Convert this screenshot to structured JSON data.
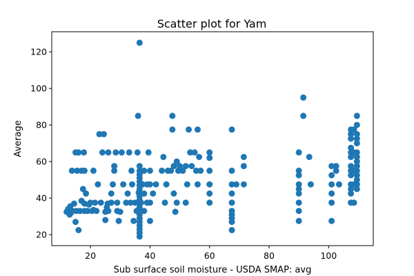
{
  "chart_data": {
    "type": "scatter",
    "title": "Scatter plot for Yam",
    "xlabel": "Sub surface soil moisture - USDA SMAP: avg",
    "ylabel": "Average",
    "xlim": [
      7,
      115
    ],
    "ylim": [
      14,
      131
    ],
    "xticks": [
      20,
      40,
      60,
      80,
      100
    ],
    "yticks": [
      20,
      40,
      60,
      80,
      100,
      120
    ],
    "grid": false,
    "color": "#1f77b4",
    "series": [
      {
        "points": [
          [
            12.0,
            32.5
          ],
          [
            12.5,
            34.0
          ],
          [
            13.0,
            31.0
          ],
          [
            13.2,
            35.5
          ],
          [
            13.5,
            32.0
          ],
          [
            13.8,
            55.0
          ],
          [
            14.0,
            33.0
          ],
          [
            14.5,
            37.0
          ],
          [
            15.0,
            27.0
          ],
          [
            15.0,
            65.0
          ],
          [
            15.3,
            33.0
          ],
          [
            15.5,
            55.0
          ],
          [
            16.0,
            22.5
          ],
          [
            16.0,
            65.0
          ],
          [
            16.5,
            33.0
          ],
          [
            17.0,
            55.0
          ],
          [
            17.0,
            38.5
          ],
          [
            17.5,
            45.0
          ],
          [
            17.8,
            65.0
          ],
          [
            18.0,
            33.0
          ],
          [
            18.0,
            37.0
          ],
          [
            18.0,
            55.0
          ],
          [
            18.5,
            42.5
          ],
          [
            19.0,
            33.0
          ],
          [
            19.5,
            36.5
          ],
          [
            20.0,
            37.5
          ],
          [
            20.5,
            33.0
          ],
          [
            21.0,
            55.0
          ],
          [
            21.0,
            33.5
          ],
          [
            21.5,
            37.5
          ],
          [
            22.0,
            33.0
          ],
          [
            22.5,
            47.5
          ],
          [
            23.0,
            75.0
          ],
          [
            23.5,
            37.5
          ],
          [
            24.0,
            65.0
          ],
          [
            24.5,
            75.0
          ],
          [
            25.0,
            28.0
          ],
          [
            25.0,
            32.5
          ],
          [
            25.5,
            35.0
          ],
          [
            25.8,
            37.0
          ],
          [
            26.0,
            33.0
          ],
          [
            26.0,
            65.0
          ],
          [
            27.0,
            37.5
          ],
          [
            27.0,
            42.5
          ],
          [
            27.5,
            47.5
          ],
          [
            28.0,
            55.0
          ],
          [
            28.0,
            57.5
          ],
          [
            28.5,
            65.0
          ],
          [
            29.0,
            37.5
          ],
          [
            29.0,
            33.0
          ],
          [
            29.5,
            27.5
          ],
          [
            30.0,
            32.5
          ],
          [
            30.5,
            65.0
          ],
          [
            31.0,
            47.5
          ],
          [
            32.0,
            37.5
          ],
          [
            32.5,
            42.5
          ],
          [
            33.0,
            65.0
          ],
          [
            33.5,
            37.5
          ],
          [
            33.8,
            55.0
          ],
          [
            34.0,
            47.5
          ],
          [
            34.5,
            27.5
          ],
          [
            35.0,
            37.5
          ],
          [
            35.5,
            33.0
          ],
          [
            35.8,
            65.0
          ],
          [
            36.0,
            85.0
          ],
          [
            36.2,
            43.0
          ],
          [
            36.5,
            125.0
          ],
          [
            36.5,
            19.0
          ],
          [
            36.5,
            21.0
          ],
          [
            36.5,
            23.0
          ],
          [
            36.5,
            25.0
          ],
          [
            36.5,
            27.0
          ],
          [
            36.5,
            29.0
          ],
          [
            36.5,
            31.0
          ],
          [
            36.5,
            33.0
          ],
          [
            36.5,
            35.0
          ],
          [
            36.5,
            37.0
          ],
          [
            36.5,
            39.0
          ],
          [
            36.5,
            41.0
          ],
          [
            36.5,
            43.0
          ],
          [
            36.5,
            45.0
          ],
          [
            36.5,
            47.0
          ],
          [
            36.5,
            49.0
          ],
          [
            36.5,
            51.0
          ],
          [
            36.5,
            53.0
          ],
          [
            36.5,
            55.0
          ],
          [
            36.5,
            57.5
          ],
          [
            37.0,
            37.5
          ],
          [
            37.5,
            47.5
          ],
          [
            38.0,
            55.0
          ],
          [
            38.0,
            42.5
          ],
          [
            38.0,
            33.0
          ],
          [
            39.0,
            37.5
          ],
          [
            39.0,
            47.5
          ],
          [
            39.5,
            65.0
          ],
          [
            40.0,
            55.0
          ],
          [
            40.0,
            37.5
          ],
          [
            40.0,
            47.5
          ],
          [
            40.0,
            27.5
          ],
          [
            41.0,
            42.5
          ],
          [
            42.0,
            47.5
          ],
          [
            44.0,
            55.0
          ],
          [
            44.5,
            62.5
          ],
          [
            45.0,
            37.5
          ],
          [
            45.5,
            47.5
          ],
          [
            46.0,
            55.0
          ],
          [
            47.0,
            55.0
          ],
          [
            47.5,
            85.0
          ],
          [
            47.5,
            77.5
          ],
          [
            48.0,
            57.5
          ],
          [
            48.0,
            42.5
          ],
          [
            48.5,
            32.5
          ],
          [
            49.0,
            37.5
          ],
          [
            49.0,
            60.0
          ],
          [
            49.5,
            55.0
          ],
          [
            50.0,
            57.5
          ],
          [
            51.0,
            55.0
          ],
          [
            52.0,
            57.5
          ],
          [
            52.0,
            37.5
          ],
          [
            52.5,
            47.5
          ],
          [
            53.0,
            77.5
          ],
          [
            53.5,
            65.0
          ],
          [
            54.0,
            57.5
          ],
          [
            55.0,
            65.0
          ],
          [
            55.5,
            55.0
          ],
          [
            56.0,
            77.5
          ],
          [
            56.0,
            47.5
          ],
          [
            56.5,
            62.5
          ],
          [
            57.0,
            55.0
          ],
          [
            60.0,
            65.0
          ],
          [
            60.0,
            62.0
          ],
          [
            60.0,
            55.0
          ],
          [
            60.0,
            47.5
          ],
          [
            60.0,
            42.5
          ],
          [
            60.0,
            37.5
          ],
          [
            67.5,
            77.5
          ],
          [
            67.5,
            55.0
          ],
          [
            67.5,
            47.5
          ],
          [
            67.5,
            42.5
          ],
          [
            67.5,
            37.5
          ],
          [
            67.5,
            33.0
          ],
          [
            67.5,
            31.0
          ],
          [
            67.5,
            29.0
          ],
          [
            67.5,
            27.0
          ],
          [
            67.5,
            22.5
          ],
          [
            69.0,
            47.5
          ],
          [
            71.5,
            62.5
          ],
          [
            71.5,
            57.5
          ],
          [
            71.5,
            47.5
          ],
          [
            90.0,
            65.0
          ],
          [
            90.0,
            55.0
          ],
          [
            90.0,
            52.5
          ],
          [
            90.0,
            47.5
          ],
          [
            90.0,
            45.0
          ],
          [
            90.0,
            42.5
          ],
          [
            90.0,
            37.5
          ],
          [
            90.0,
            33.0
          ],
          [
            90.0,
            27.5
          ],
          [
            91.5,
            95.0
          ],
          [
            91.5,
            85.0
          ],
          [
            93.5,
            62.5
          ],
          [
            94.0,
            47.5
          ],
          [
            101.0,
            57.5
          ],
          [
            101.0,
            52.5
          ],
          [
            101.0,
            47.5
          ],
          [
            101.0,
            42.5
          ],
          [
            101.0,
            37.5
          ],
          [
            101.0,
            27.5
          ],
          [
            102.5,
            57.5
          ],
          [
            102.5,
            55.0
          ],
          [
            103.5,
            47.5
          ],
          [
            107.5,
            77.5
          ],
          [
            107.5,
            75.0
          ],
          [
            107.5,
            72.5
          ],
          [
            107.5,
            67.5
          ],
          [
            107.5,
            65.0
          ],
          [
            107.5,
            62.5
          ],
          [
            107.5,
            57.5
          ],
          [
            107.5,
            55.0
          ],
          [
            107.5,
            52.5
          ],
          [
            107.5,
            47.5
          ],
          [
            107.5,
            45.0
          ],
          [
            107.5,
            42.5
          ],
          [
            107.5,
            37.5
          ],
          [
            108.5,
            77.5
          ],
          [
            108.5,
            65.0
          ],
          [
            108.5,
            55.0
          ],
          [
            108.5,
            47.5
          ],
          [
            108.5,
            37.5
          ],
          [
            109.5,
            85.0
          ],
          [
            109.5,
            80.0
          ],
          [
            109.5,
            75.0
          ],
          [
            109.5,
            72.5
          ],
          [
            109.5,
            70.0
          ],
          [
            109.5,
            65.0
          ],
          [
            109.5,
            62.5
          ],
          [
            109.5,
            60.0
          ],
          [
            109.5,
            57.5
          ],
          [
            109.5,
            55.0
          ],
          [
            109.5,
            52.5
          ],
          [
            109.5,
            50.0
          ],
          [
            109.5,
            47.5
          ],
          [
            109.5,
            45.0
          ]
        ]
      }
    ]
  }
}
